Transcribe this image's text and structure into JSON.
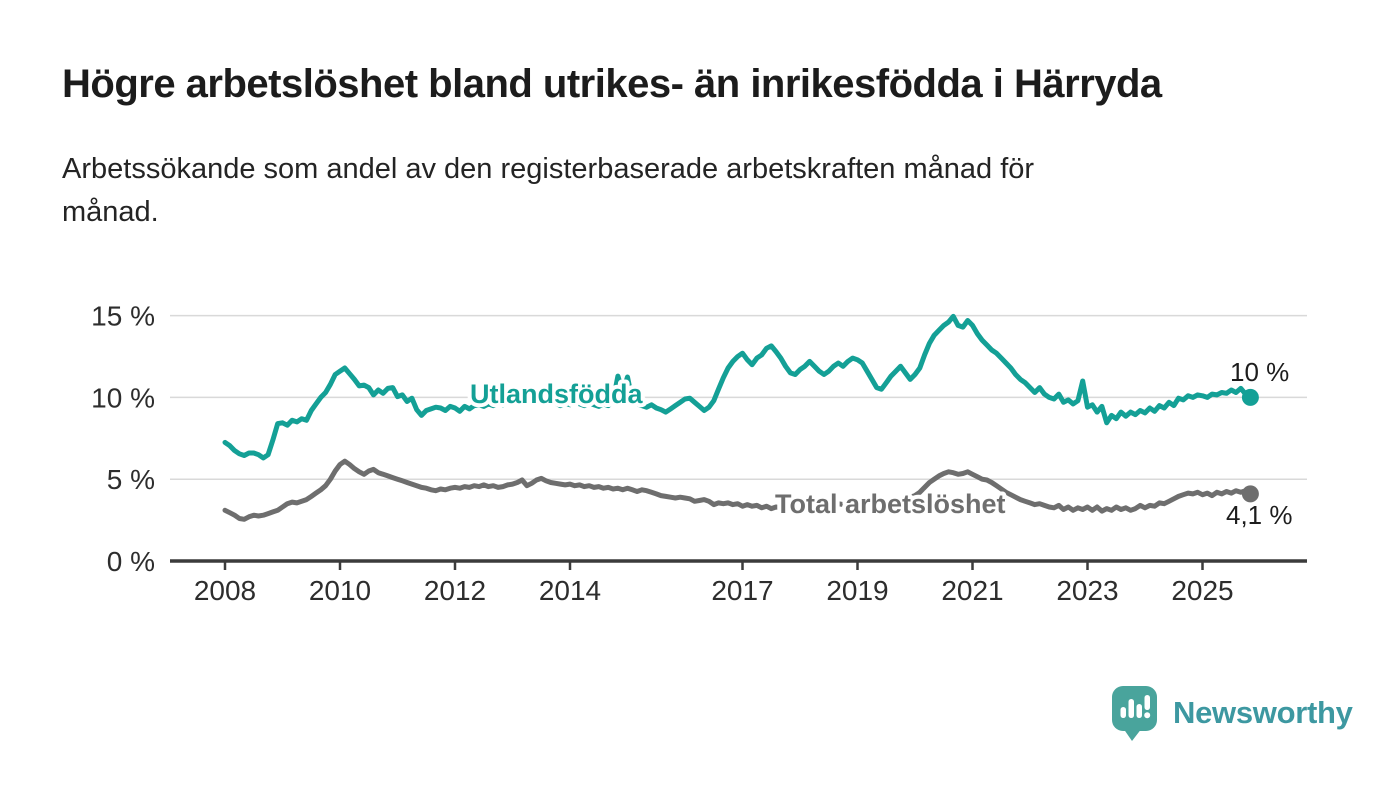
{
  "header": {
    "title": "Högre arbetslöshet bland utrikes- än inrikesfödda i Härryda",
    "subtitle_lines": [
      "Arbetssökande som andel av den registerbaserade arbetskraften månad för",
      "månad."
    ]
  },
  "chart_data": {
    "type": "line",
    "unit": "%",
    "x": {
      "start_year": 2008,
      "start_month": 1,
      "frequency": "monthly",
      "end_year": 2025,
      "end_month": 11
    },
    "x_ticks": [
      2008,
      2010,
      2012,
      2014,
      2017,
      2019,
      2021,
      2023,
      2025
    ],
    "y_ticks": [
      0,
      5,
      10,
      15
    ],
    "y_tick_labels": [
      "0 %",
      "5 %",
      "10 %",
      "15 %"
    ],
    "ylim": [
      0,
      15.6
    ],
    "grid": "horizontal",
    "colors": {
      "gridline": "#d9d9d9",
      "axis": "#3b3b3b",
      "tick_text": "#2d2d2d"
    },
    "series": [
      {
        "name": "Utlandsfödda",
        "color": "#14a096",
        "end_label": "10 %",
        "end_value": 10.0,
        "values": [
          7.25,
          7.05,
          6.75,
          6.55,
          6.45,
          6.6,
          6.6,
          6.5,
          6.3,
          6.5,
          7.4,
          8.4,
          8.45,
          8.3,
          8.6,
          8.5,
          8.7,
          8.6,
          9.2,
          9.6,
          10.0,
          10.3,
          10.8,
          11.4,
          11.6,
          11.8,
          11.45,
          11.1,
          10.7,
          10.75,
          10.6,
          10.15,
          10.45,
          10.25,
          10.55,
          10.6,
          10.05,
          10.15,
          9.75,
          9.95,
          9.25,
          8.9,
          9.2,
          9.3,
          9.4,
          9.35,
          9.2,
          9.45,
          9.35,
          9.15,
          9.45,
          9.3,
          9.5,
          9.55,
          9.45,
          9.6,
          9.5,
          9.65,
          9.55,
          9.7,
          9.6,
          9.75,
          9.6,
          9.8,
          9.7,
          9.85,
          9.7,
          9.6,
          9.75,
          9.65,
          9.5,
          9.65,
          9.55,
          9.7,
          9.6,
          9.5,
          9.65,
          9.55,
          9.45,
          9.6,
          9.5,
          9.8,
          11.3,
          10.3,
          11.25,
          9.8,
          9.6,
          9.5,
          9.4,
          9.55,
          9.35,
          9.25,
          9.1,
          9.3,
          9.5,
          9.7,
          9.9,
          9.95,
          9.7,
          9.45,
          9.2,
          9.4,
          9.8,
          10.5,
          11.2,
          11.8,
          12.2,
          12.5,
          12.7,
          12.3,
          12.0,
          12.4,
          12.6,
          13.0,
          13.15,
          12.8,
          12.4,
          11.9,
          11.5,
          11.4,
          11.7,
          11.9,
          12.2,
          11.9,
          11.6,
          11.4,
          11.6,
          11.9,
          12.1,
          11.9,
          12.2,
          12.4,
          12.3,
          12.1,
          11.6,
          11.1,
          10.6,
          10.5,
          10.9,
          11.3,
          11.6,
          11.9,
          11.5,
          11.1,
          11.4,
          11.8,
          12.6,
          13.3,
          13.8,
          14.1,
          14.4,
          14.6,
          14.95,
          14.4,
          14.3,
          14.7,
          14.4,
          13.9,
          13.5,
          13.2,
          12.9,
          12.7,
          12.4,
          12.1,
          11.8,
          11.4,
          11.1,
          10.9,
          10.6,
          10.3,
          10.6,
          10.2,
          10.0,
          9.9,
          10.2,
          9.7,
          9.85,
          9.6,
          9.8,
          11.0,
          9.4,
          9.55,
          9.1,
          9.45,
          8.45,
          8.9,
          8.7,
          9.1,
          8.85,
          9.1,
          8.95,
          9.2,
          9.05,
          9.35,
          9.15,
          9.5,
          9.35,
          9.7,
          9.5,
          9.95,
          9.85,
          10.1,
          10.0,
          10.15,
          10.1,
          10.0,
          10.2,
          10.15,
          10.3,
          10.25,
          10.45,
          10.3,
          10.55,
          10.2,
          10.0
        ]
      },
      {
        "name": "Total arbetslöshet",
        "color": "#6e6e6e",
        "end_label": "4,1 %",
        "end_value": 4.1,
        "values": [
          3.1,
          2.95,
          2.8,
          2.6,
          2.55,
          2.7,
          2.8,
          2.75,
          2.8,
          2.9,
          3.0,
          3.1,
          3.3,
          3.5,
          3.6,
          3.55,
          3.65,
          3.75,
          3.95,
          4.15,
          4.35,
          4.6,
          5.0,
          5.5,
          5.9,
          6.1,
          5.9,
          5.65,
          5.45,
          5.3,
          5.5,
          5.6,
          5.4,
          5.3,
          5.2,
          5.1,
          5.0,
          4.9,
          4.8,
          4.7,
          4.6,
          4.5,
          4.45,
          4.35,
          4.3,
          4.4,
          4.35,
          4.45,
          4.5,
          4.45,
          4.55,
          4.5,
          4.6,
          4.55,
          4.65,
          4.55,
          4.6,
          4.5,
          4.55,
          4.65,
          4.7,
          4.8,
          4.95,
          4.6,
          4.75,
          4.95,
          5.05,
          4.9,
          4.8,
          4.75,
          4.7,
          4.65,
          4.7,
          4.6,
          4.65,
          4.55,
          4.6,
          4.5,
          4.55,
          4.45,
          4.5,
          4.4,
          4.45,
          4.35,
          4.45,
          4.35,
          4.25,
          4.35,
          4.3,
          4.2,
          4.1,
          4.0,
          3.95,
          3.9,
          3.85,
          3.9,
          3.85,
          3.8,
          3.65,
          3.7,
          3.75,
          3.65,
          3.45,
          3.55,
          3.5,
          3.55,
          3.45,
          3.5,
          3.35,
          3.45,
          3.35,
          3.4,
          3.25,
          3.35,
          3.2,
          3.3,
          3.25,
          3.35,
          3.3,
          3.4,
          3.3,
          3.25,
          3.35,
          3.3,
          3.4,
          3.35,
          3.45,
          3.4,
          3.5,
          3.45,
          3.5,
          3.55,
          3.5,
          3.45,
          3.55,
          3.5,
          3.6,
          3.55,
          3.5,
          3.6,
          3.65,
          3.7,
          3.8,
          3.9,
          4.0,
          4.2,
          4.5,
          4.8,
          5.0,
          5.2,
          5.35,
          5.45,
          5.4,
          5.3,
          5.35,
          5.45,
          5.3,
          5.15,
          5.0,
          4.95,
          4.8,
          4.6,
          4.4,
          4.2,
          4.05,
          3.9,
          3.75,
          3.65,
          3.55,
          3.45,
          3.5,
          3.4,
          3.3,
          3.25,
          3.4,
          3.15,
          3.3,
          3.1,
          3.25,
          3.15,
          3.3,
          3.1,
          3.3,
          3.05,
          3.2,
          3.1,
          3.3,
          3.15,
          3.25,
          3.1,
          3.2,
          3.4,
          3.25,
          3.4,
          3.35,
          3.55,
          3.5,
          3.65,
          3.8,
          3.95,
          4.05,
          4.15,
          4.1,
          4.2,
          4.05,
          4.15,
          4.0,
          4.2,
          4.1,
          4.25,
          4.15,
          4.3,
          4.2,
          4.3,
          4.1
        ]
      }
    ]
  },
  "footer": {
    "brand": "Newsworthy",
    "logo_bubble_color": "#49a49c",
    "wordmark_color": "#3d98a1"
  }
}
